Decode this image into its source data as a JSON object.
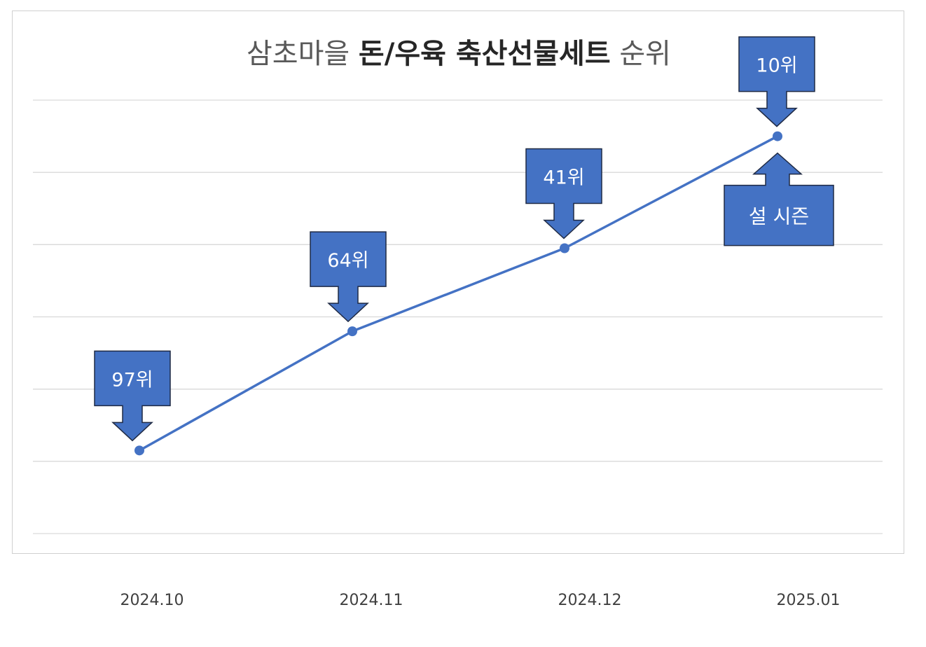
{
  "chart_data": {
    "type": "line",
    "title_parts": [
      {
        "text": "삼초마을 ",
        "bold": false
      },
      {
        "text": "돈/우육 축산선물세트",
        "bold": true
      },
      {
        "text": " 순위",
        "bold": false
      }
    ],
    "categories": [
      "2024.10",
      "2024.11",
      "2024.12",
      "2025.01"
    ],
    "series": [
      {
        "values": [
          97,
          64,
          41,
          10
        ],
        "color": "#4472C4"
      }
    ],
    "y_inverted": true,
    "ylim": [
      0,
      120
    ],
    "grid": true,
    "data_labels": [
      "97위",
      "64위",
      "41위",
      "10위"
    ],
    "annotations": [
      {
        "text": "설 시즌",
        "category": "2025.01",
        "position": "below"
      }
    ],
    "colors": {
      "line": "#4472C4",
      "callout_fill": "#4472C4",
      "callout_stroke": "#1f2a44",
      "callout_text": "#ffffff",
      "grid": "#d9d9d9",
      "title": "#595959",
      "axis_text": "#404040"
    }
  }
}
